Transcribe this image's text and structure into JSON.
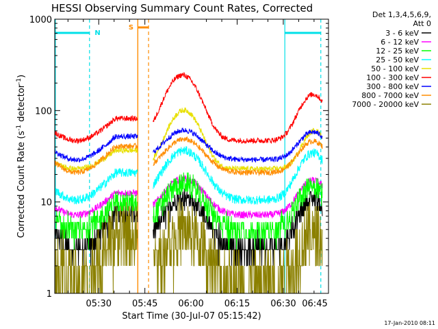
{
  "chart_data": {
    "type": "line",
    "title": "HESSI Observing Summary Count Rates, Corrected",
    "xlabel": "Start Time (30-Jul-07 05:15:42)",
    "ylabel_main": "Corrected Count Rate (s",
    "ylabel_exp1": "-1",
    "ylabel_mid": " detector",
    "ylabel_exp2": "-1",
    "ylabel_end": ")",
    "y_scale": "log",
    "ylim": [
      1,
      1000
    ],
    "xlim_minutes": [
      0,
      89
    ],
    "x_ticks": [
      {
        "label": "05:30",
        "minute": 14.3
      },
      {
        "label": "05:45",
        "minute": 29.3
      },
      {
        "label": "06:00",
        "minute": 44.3
      },
      {
        "label": "06:15",
        "minute": 59.3
      },
      {
        "label": "06:30",
        "minute": 74.3
      },
      {
        "label": "06:45",
        "minute": 89.3
      }
    ],
    "y_ticks": [
      {
        "label": "1",
        "value": 1
      },
      {
        "label": "10",
        "value": 10
      },
      {
        "label": "100",
        "value": 100
      },
      {
        "label": "1000",
        "value": 1000
      }
    ],
    "legend": {
      "header1": "Det 1,3,4,5,6,9,",
      "header2": "Att 0",
      "placement": "right"
    },
    "markers": [
      {
        "label": "N",
        "color": "#00e0e8"
      },
      {
        "label": "S",
        "color": "#ff8c00"
      }
    ],
    "footer": "17-Jan-2010 08:11",
    "series": [
      {
        "name": "3 - 6 keV",
        "color": "#000000"
      },
      {
        "name": "6 - 12 keV",
        "color": "#ff00ff"
      },
      {
        "name": "12 - 25 keV",
        "color": "#00ff00"
      },
      {
        "name": "25 - 50 keV",
        "color": "#00ffff"
      },
      {
        "name": "50 - 100 keV",
        "color": "#e8e000"
      },
      {
        "name": "100 - 300 keV",
        "color": "#ff0000"
      },
      {
        "name": "300 - 800 keV",
        "color": "#0000ff"
      },
      {
        "name": "800 - 7000 keV",
        "color": "#ff8c00"
      },
      {
        "name": "7000 - 20000 keV",
        "color": "#8b8000"
      }
    ]
  }
}
